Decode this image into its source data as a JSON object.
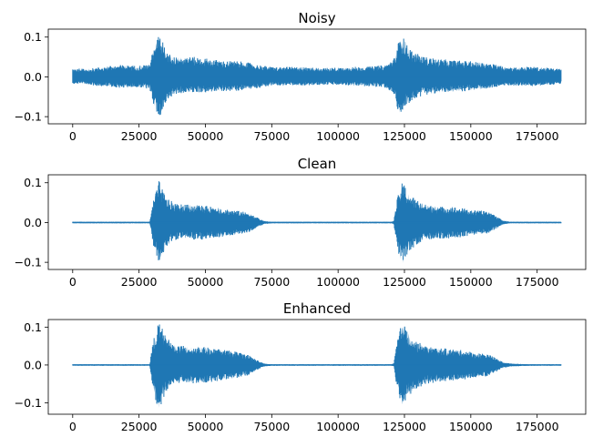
{
  "chart_data": [
    {
      "type": "line",
      "title": "Noisy",
      "xlabel": "",
      "ylabel": "",
      "xlim": [
        -9200,
        193300
      ],
      "ylim": [
        -0.118,
        0.12
      ],
      "xticks": [
        0,
        25000,
        50000,
        75000,
        100000,
        125000,
        150000,
        175000
      ],
      "xtick_labels": [
        "0",
        "25000",
        "50000",
        "75000",
        "100000",
        "125000",
        "150000",
        "175000"
      ],
      "yticks": [
        0.1,
        0.0,
        -0.1
      ],
      "ytick_labels": [
        "0.1",
        "0.0",
        "−0.1"
      ],
      "series_color": "#1f77b4",
      "envelope": {
        "x": [
          0,
          5000,
          12000,
          18000,
          24000,
          29000,
          30000,
          31000,
          32500,
          33500,
          35000,
          38000,
          42000,
          47000,
          52000,
          57000,
          62000,
          67000,
          70000,
          75000,
          85000,
          95000,
          105000,
          112000,
          118000,
          121500,
          122500,
          123500,
          124500,
          126000,
          129000,
          133000,
          138000,
          143000,
          148000,
          152000,
          156000,
          160000,
          163000,
          168000,
          172000,
          176000,
          180000,
          184000
        ],
        "upper": [
          0.022,
          0.02,
          0.026,
          0.03,
          0.028,
          0.032,
          0.06,
          0.08,
          0.108,
          0.095,
          0.07,
          0.05,
          0.05,
          0.05,
          0.045,
          0.04,
          0.04,
          0.035,
          0.03,
          0.025,
          0.025,
          0.022,
          0.025,
          0.026,
          0.03,
          0.05,
          0.08,
          0.112,
          0.1,
          0.08,
          0.06,
          0.05,
          0.045,
          0.042,
          0.04,
          0.038,
          0.036,
          0.03,
          0.025,
          0.024,
          0.026,
          0.024,
          0.022,
          0.02
        ],
        "lower": [
          -0.018,
          -0.02,
          -0.024,
          -0.028,
          -0.026,
          -0.03,
          -0.055,
          -0.085,
          -0.108,
          -0.09,
          -0.065,
          -0.045,
          -0.04,
          -0.04,
          -0.038,
          -0.036,
          -0.035,
          -0.03,
          -0.028,
          -0.022,
          -0.022,
          -0.02,
          -0.022,
          -0.024,
          -0.028,
          -0.05,
          -0.085,
          -0.105,
          -0.09,
          -0.07,
          -0.055,
          -0.045,
          -0.04,
          -0.038,
          -0.036,
          -0.034,
          -0.03,
          -0.026,
          -0.022,
          -0.022,
          -0.024,
          -0.022,
          -0.02,
          -0.018
        ]
      }
    },
    {
      "type": "line",
      "title": "Clean",
      "xlabel": "",
      "ylabel": "",
      "xlim": [
        -9200,
        193300
      ],
      "ylim": [
        -0.118,
        0.12
      ],
      "xticks": [
        0,
        25000,
        50000,
        75000,
        100000,
        125000,
        150000,
        175000
      ],
      "xtick_labels": [
        "0",
        "25000",
        "50000",
        "75000",
        "100000",
        "125000",
        "150000",
        "175000"
      ],
      "yticks": [
        0.1,
        0.0,
        -0.1
      ],
      "ytick_labels": [
        "0.1",
        "0.0",
        "−0.1"
      ],
      "series_color": "#1f77b4",
      "envelope": {
        "x": [
          0,
          29000,
          29500,
          30500,
          31500,
          32500,
          33500,
          35000,
          38000,
          42000,
          47000,
          52000,
          57000,
          62000,
          66000,
          69000,
          72000,
          75000,
          120000,
          121000,
          122000,
          123000,
          124500,
          126000,
          129000,
          133000,
          138000,
          143000,
          148000,
          152000,
          156000,
          159000,
          162000,
          165000,
          184000
        ],
        "upper": [
          0.002,
          0.002,
          0.02,
          0.06,
          0.08,
          0.105,
          0.09,
          0.065,
          0.05,
          0.045,
          0.045,
          0.04,
          0.035,
          0.03,
          0.025,
          0.015,
          0.004,
          0.002,
          0.002,
          0.004,
          0.05,
          0.08,
          0.105,
          0.08,
          0.06,
          0.045,
          0.04,
          0.04,
          0.035,
          0.03,
          0.03,
          0.02,
          0.005,
          0.002,
          0.002
        ],
        "lower": [
          -0.002,
          -0.002,
          -0.02,
          -0.06,
          -0.085,
          -0.108,
          -0.09,
          -0.065,
          -0.045,
          -0.04,
          -0.045,
          -0.04,
          -0.035,
          -0.03,
          -0.025,
          -0.015,
          -0.004,
          -0.002,
          -0.002,
          -0.004,
          -0.05,
          -0.085,
          -0.105,
          -0.08,
          -0.06,
          -0.045,
          -0.04,
          -0.04,
          -0.035,
          -0.03,
          -0.028,
          -0.018,
          -0.005,
          -0.002,
          -0.002
        ]
      }
    },
    {
      "type": "line",
      "title": "Enhanced",
      "xlabel": "",
      "ylabel": "",
      "xlim": [
        -9200,
        193300
      ],
      "ylim": [
        -0.13,
        0.12
      ],
      "xticks": [
        0,
        25000,
        50000,
        75000,
        100000,
        125000,
        150000,
        175000
      ],
      "xtick_labels": [
        "0",
        "25000",
        "50000",
        "75000",
        "100000",
        "125000",
        "150000",
        "175000"
      ],
      "yticks": [
        0.1,
        0.0,
        -0.1
      ],
      "ytick_labels": [
        "0.1",
        "0.0",
        "−0.1"
      ],
      "series_color": "#1f77b4",
      "envelope": {
        "x": [
          0,
          29000,
          29500,
          30500,
          31500,
          32500,
          33500,
          35000,
          38000,
          42000,
          47000,
          52000,
          57000,
          62000,
          66000,
          69000,
          72000,
          75000,
          120000,
          121000,
          122000,
          123000,
          124500,
          126000,
          129000,
          133000,
          138000,
          143000,
          148000,
          152000,
          156000,
          159000,
          162000,
          165000,
          172000,
          184000
        ],
        "upper": [
          0.002,
          0.002,
          0.025,
          0.07,
          0.09,
          0.12,
          0.1,
          0.075,
          0.055,
          0.05,
          0.05,
          0.045,
          0.04,
          0.035,
          0.028,
          0.015,
          0.004,
          0.002,
          0.002,
          0.004,
          0.055,
          0.09,
          0.115,
          0.09,
          0.065,
          0.05,
          0.045,
          0.042,
          0.038,
          0.032,
          0.03,
          0.02,
          0.008,
          0.004,
          0.002,
          0.002
        ],
        "lower": [
          -0.002,
          -0.002,
          -0.025,
          -0.07,
          -0.1,
          -0.122,
          -0.1,
          -0.075,
          -0.05,
          -0.045,
          -0.05,
          -0.045,
          -0.04,
          -0.035,
          -0.028,
          -0.015,
          -0.004,
          -0.002,
          -0.002,
          -0.004,
          -0.055,
          -0.09,
          -0.12,
          -0.09,
          -0.065,
          -0.05,
          -0.045,
          -0.042,
          -0.038,
          -0.032,
          -0.03,
          -0.02,
          -0.008,
          -0.004,
          -0.002,
          -0.002
        ]
      }
    }
  ]
}
